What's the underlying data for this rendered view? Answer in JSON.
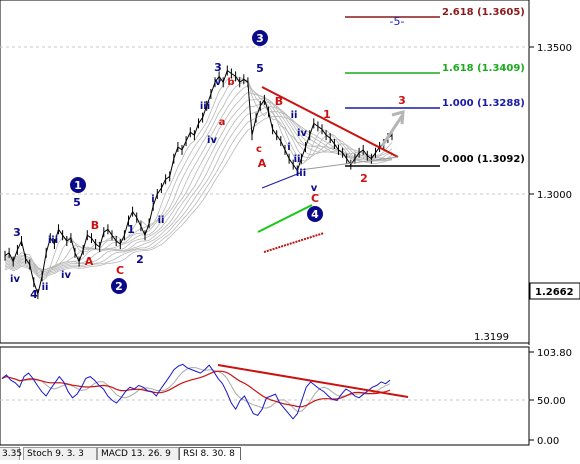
{
  "chart_data": [
    {
      "type": "line",
      "title": "",
      "y_axis": {
        "labels": [
          "1.3500",
          "1.3000",
          "1.2662",
          "1.3199"
        ],
        "gridlines": [
          1.35,
          1.3
        ]
      },
      "ylim": [
        1.2525,
        1.369
      ],
      "price_series": [
        1.279,
        1.28,
        1.277,
        1.281,
        1.284,
        1.278,
        1.276,
        1.27,
        1.266,
        1.272,
        1.28,
        1.285,
        1.283,
        1.288,
        1.286,
        1.284,
        1.285,
        1.28,
        1.277,
        1.281,
        1.286,
        1.285,
        1.283,
        1.282,
        1.287,
        1.288,
        1.286,
        1.284,
        1.283,
        1.286,
        1.291,
        1.294,
        1.292,
        1.289,
        1.286,
        1.29,
        1.296,
        1.3,
        1.302,
        1.305,
        1.306,
        1.312,
        1.316,
        1.315,
        1.318,
        1.321,
        1.32,
        1.324,
        1.326,
        1.33,
        1.334,
        1.338,
        1.34,
        1.338,
        1.342,
        1.341,
        1.34,
        1.338,
        1.339,
        1.338,
        1.32,
        1.326,
        1.33,
        1.332,
        1.328,
        1.322,
        1.32,
        1.318,
        1.315,
        1.312,
        1.31,
        1.308,
        1.312,
        1.316,
        1.32,
        1.324,
        1.323,
        1.322,
        1.32,
        1.319,
        1.317,
        1.315,
        1.314,
        1.312,
        1.31,
        1.312,
        1.314,
        1.315,
        1.313,
        1.312,
        1.314,
        1.316,
        1.317,
        1.319,
        1.32
      ],
      "fibonacci_levels": [
        {
          "ratio": "2.618",
          "label": "2.618 (1.3605)",
          "value": 1.3605,
          "color": "#8b1a1a"
        },
        {
          "ratio": "1.618",
          "label": "1.618 (1.3409)",
          "value": 1.3409,
          "color": "#1aaa1a"
        },
        {
          "ratio": "1.000",
          "label": "1.000 (1.3288)",
          "value": 1.3288,
          "color": "#1a1aaa"
        },
        {
          "ratio": "0.000",
          "label": "0.000 (1.3092)",
          "value": 1.3092,
          "color": "#000000"
        }
      ],
      "wave_labels": {
        "blue_circled": [
          "1",
          "2",
          "3",
          "4"
        ],
        "blue_dark": [
          "3",
          "iv",
          "4",
          "ii",
          "iii",
          "iv",
          "5",
          "1",
          "2",
          "i",
          "ii",
          "iii",
          "iv",
          "3",
          "v",
          "5",
          "ii",
          "iv",
          "i",
          "ii",
          "iii",
          "v",
          "-5-"
        ],
        "red": [
          "B",
          "A",
          "C",
          "b",
          "a",
          "c",
          "A",
          "B",
          "1",
          "2",
          "3",
          "C"
        ]
      }
    },
    {
      "type": "line",
      "title": "",
      "y_axis": {
        "labels": [
          "103.80",
          "50.00",
          "0.00"
        ]
      },
      "ylim": [
        -10,
        110
      ],
      "rsi_values": [
        70,
        74,
        68,
        65,
        60,
        72,
        76,
        70,
        62,
        55,
        50,
        58,
        65,
        72,
        66,
        55,
        48,
        52,
        60,
        70,
        72,
        68,
        62,
        58,
        50,
        45,
        42,
        48,
        55,
        60,
        58,
        62,
        60,
        56,
        55,
        50,
        58,
        65,
        72,
        80,
        84,
        86,
        82,
        80,
        78,
        76,
        80,
        85,
        78,
        70,
        64,
        54,
        42,
        35,
        45,
        50,
        40,
        30,
        28,
        35,
        48,
        50,
        52,
        42,
        36,
        30,
        24,
        30,
        45,
        60,
        66,
        62,
        58,
        55,
        50,
        46,
        45,
        52,
        58,
        55,
        50,
        48,
        52,
        56,
        60,
        62,
        66,
        64,
        68
      ]
    }
  ],
  "tabs": [
    "3.35",
    "Stoch 9. 3. 3",
    "MACD 13. 26. 9",
    "RSI 8. 30. 8"
  ],
  "colors": {
    "blue_label": "#0a0a8a",
    "red_label": "#cc1111",
    "price": "#000000",
    "ribbon": "#b8b8b8"
  }
}
